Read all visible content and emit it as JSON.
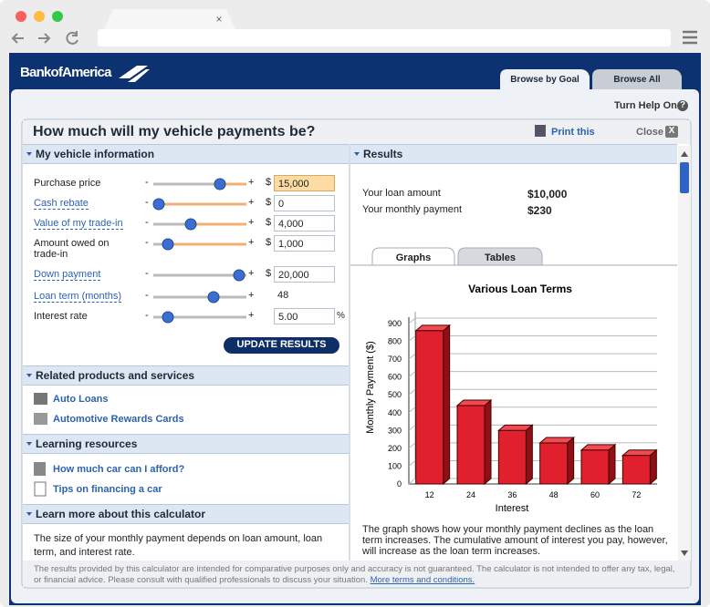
{
  "browser": {
    "tab_close": "×"
  },
  "site": {
    "logo": "BankofAmerica",
    "tabs": [
      "Browse by Goal",
      "Browse All"
    ],
    "help": "Turn Help On",
    "help_icon": "?"
  },
  "panel": {
    "title": "How much will my vehicle payments be?",
    "print": "Print this",
    "close": "Close",
    "close_icon": "X"
  },
  "vehicle": {
    "heading": "My vehicle information",
    "minus": "-",
    "plus": "+",
    "fields": [
      {
        "label": "Purchase price",
        "prefix": "$",
        "value": "15,000",
        "link": false
      },
      {
        "label": "Cash rebate",
        "prefix": "$",
        "value": "0",
        "link": true
      },
      {
        "label": "Value of my trade-in",
        "prefix": "$",
        "value": "4,000",
        "link": true
      },
      {
        "label": "Amount owed on trade-in",
        "prefix": "$",
        "value": "1,000",
        "link": false
      },
      {
        "label": "Down payment",
        "prefix": "$",
        "value": "20,000",
        "link": true
      },
      {
        "label": "Loan term (months)",
        "value": "48",
        "link": true
      },
      {
        "label": "Interest rate",
        "value": "5.00",
        "suffix": "%",
        "link": false
      }
    ],
    "button": "UPDATE RESULTS"
  },
  "related": {
    "heading": "Related products and services",
    "links": [
      "Auto Loans",
      "Automotive Rewards Cards"
    ]
  },
  "learning": {
    "heading": "Learning resources",
    "links": [
      "How much car can I afford?",
      "Tips on financing a car"
    ]
  },
  "learn_more": {
    "heading": "Learn more about this calculator",
    "text": "The size of your monthly payment depends on loan amount, loan term, and interest rate."
  },
  "results": {
    "heading": "Results",
    "rows": [
      [
        "Your loan amount",
        "$10,000"
      ],
      [
        "Your monthly payment",
        "$230"
      ]
    ],
    "tabs": [
      "Graphs",
      "Tables"
    ],
    "chart": {
      "type": "bar",
      "title": "Various Loan Terms",
      "x_label": "Interest",
      "y_label": "Monthly Payment ($)",
      "categories": [
        "12",
        "24",
        "36",
        "48",
        "60",
        "72"
      ],
      "values": [
        860,
        440,
        300,
        230,
        190,
        160
      ],
      "color": "#e0202c",
      "ylim": [
        0,
        900
      ],
      "yticks": [
        0,
        100,
        200,
        300,
        400,
        500,
        600,
        700,
        800,
        900
      ],
      "grid": true
    },
    "description": "The graph shows how your monthly payment declines as the loan term increases. The cumulative amount of interest you pay, however, will increase as the loan term increases."
  },
  "footer": {
    "text": "The results provided by this calculator are intended for comparative purposes only and accuracy is not guaranteed. The calculator is not intended to offer any tax, legal, or financial advice. Please consult with qualified professionals to discuss your situation.",
    "link": "More terms and conditions."
  }
}
